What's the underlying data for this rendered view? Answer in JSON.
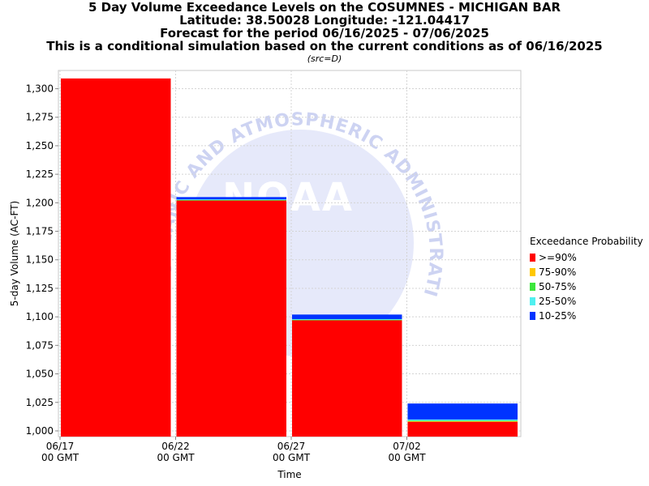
{
  "titles": [
    "5 Day Volume Exceedance Levels on the COSUMNES - MICHIGAN BAR",
    "Latitude: 38.50028 Longitude: -121.04417",
    "Forecast for the period 06/16/2025 - 07/06/2025",
    "This is a conditional simulation based on the current conditions as of 06/16/2025"
  ],
  "source_note": "(src=D)",
  "chart_data": {
    "type": "bar",
    "subtype": "stacked",
    "xlabel": "Time",
    "ylabel": "5-day Volume (AC-FT)",
    "ylim": [
      995,
      1316
    ],
    "y_ticks": [
      1000,
      1025,
      1050,
      1075,
      1100,
      1125,
      1150,
      1175,
      1200,
      1225,
      1250,
      1275,
      1300
    ],
    "y_tick_labels": [
      "1,000",
      "1,025",
      "1,050",
      "1,075",
      "1,100",
      "1,125",
      "1,150",
      "1,175",
      "1,200",
      "1,225",
      "1,250",
      "1,275",
      "1,300"
    ],
    "x_ticks": [
      {
        "line1": "06/17",
        "line2": "00 GMT"
      },
      {
        "line1": "06/22",
        "line2": "00 GMT"
      },
      {
        "line1": "06/27",
        "line2": "00 GMT"
      },
      {
        "line1": "07/02",
        "line2": "00 GMT"
      }
    ],
    "categories": [
      "06/17",
      "06/22",
      "06/27",
      "07/02"
    ],
    "grid": true,
    "legend_placement": "right",
    "legend_title": "Exceedance Probability",
    "series": [
      {
        "name": ">=90%",
        "color": "#ff0000",
        "values": [
          1309,
          1202,
          1097,
          1008
        ]
      },
      {
        "name": "75-90%",
        "color": "#ffc800",
        "values": [
          1309,
          1202,
          1097,
          1008.5
        ]
      },
      {
        "name": "50-75%",
        "color": "#3ce63c",
        "values": [
          1309,
          1202.5,
          1097.5,
          1009
        ]
      },
      {
        "name": "25-50%",
        "color": "#50f0f0",
        "values": [
          1309,
          1203,
          1098,
          1010
        ]
      },
      {
        "name": "10-25%",
        "color": "#0033ff",
        "values": [
          1309,
          1205,
          1102,
          1024
        ]
      }
    ]
  },
  "watermark": {
    "ring_text": "OCEANIC AND ATMOSPHERIC ADMINISTRATION",
    "center_text": "NOAA"
  }
}
